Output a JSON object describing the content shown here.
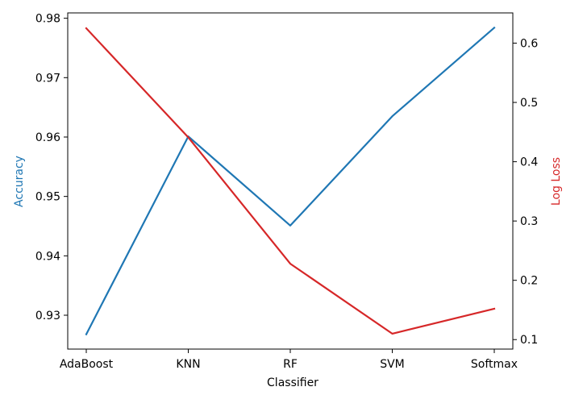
{
  "chart_data": {
    "type": "line",
    "categories": [
      "AdaBoost",
      "KNN",
      "RF",
      "SVM",
      "Softmax"
    ],
    "xlabel": "Classifier",
    "series": [
      {
        "name": "Accuracy",
        "axis": "left",
        "color": "#1f77b4",
        "values": [
          0.9268,
          0.9601,
          0.9451,
          0.9635,
          0.9784
        ]
      },
      {
        "name": "Log Loss",
        "axis": "right",
        "color": "#d62728",
        "values": [
          0.625,
          0.441,
          0.228,
          0.11,
          0.152
        ]
      }
    ],
    "left_axis": {
      "label": "Accuracy",
      "color": "#1f77b4",
      "range": [
        0.9243,
        0.9809
      ],
      "ticks": [
        0.93,
        0.94,
        0.95,
        0.96,
        0.97,
        0.98
      ],
      "tick_labels": [
        "0.93",
        "0.94",
        "0.95",
        "0.96",
        "0.97",
        "0.98"
      ]
    },
    "right_axis": {
      "label": "Log Loss",
      "color": "#d62728",
      "range": [
        0.084,
        0.651
      ],
      "ticks": [
        0.1,
        0.2,
        0.3,
        0.4,
        0.5,
        0.6
      ],
      "tick_labels": [
        "0.1",
        "0.2",
        "0.3",
        "0.4",
        "0.5",
        "0.6"
      ]
    },
    "grid": false,
    "legend": "none"
  }
}
